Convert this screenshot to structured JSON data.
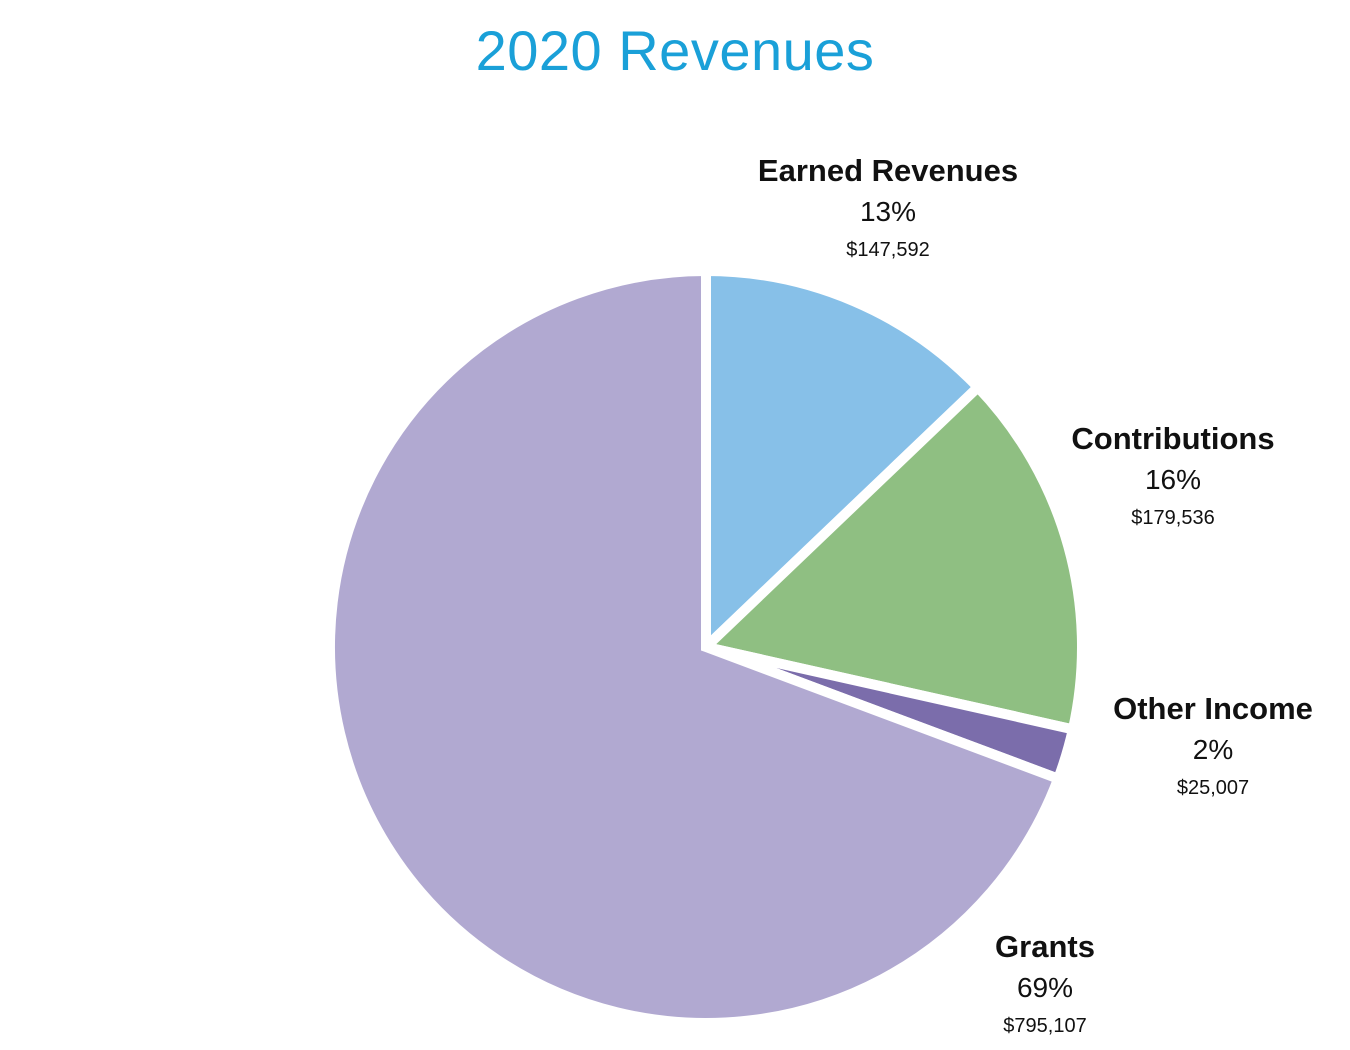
{
  "colors": {
    "title": "#1aa0d8"
  },
  "chart_data": {
    "type": "pie",
    "title": "2020 Revenues",
    "slices": [
      {
        "label": "Earned Revenues",
        "percent_label": "13%",
        "amount_label": "$147,592",
        "value": 147592,
        "color": "#87c0e8"
      },
      {
        "label": "Contributions",
        "percent_label": "16%",
        "amount_label": "$179,536",
        "value": 179536,
        "color": "#8fbf82"
      },
      {
        "label": "Other Income",
        "percent_label": "2%",
        "amount_label": "$25,007",
        "value": 25007,
        "color": "#7b6dab"
      },
      {
        "label": "Grants",
        "percent_label": "69%",
        "amount_label": "$795,107",
        "value": 795107,
        "color": "#b1a9d1"
      }
    ]
  }
}
